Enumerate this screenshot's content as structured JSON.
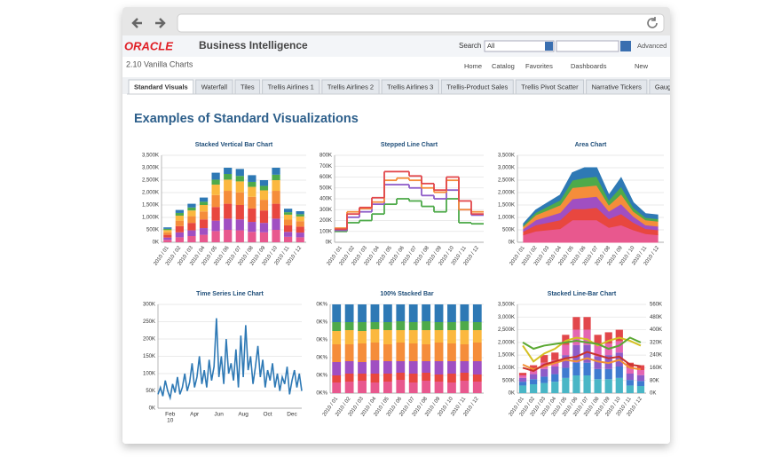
{
  "header": {
    "logo": "ORACLE",
    "product": "Business Intelligence",
    "search_label": "Search",
    "search_scope": "All",
    "advanced": "Advanced"
  },
  "subheader": {
    "dashboard": "2.10 Vanilla Charts",
    "nav": [
      "Home",
      "Catalog",
      "Favorites",
      "Dashboards",
      "New"
    ]
  },
  "tabs": [
    "Standard Visuals",
    "Waterfall",
    "Tiles",
    "Trellis Airlines 1",
    "Trellis Airlines 2",
    "Trellis Airlines 3",
    "Trellis-Product Sales",
    "Trellis Pivot Scatter",
    "Narrative Tickers",
    "Gauges an"
  ],
  "page_title": "Examples of Standard Visualizations",
  "chart_data": [
    {
      "type": "stacked_bar",
      "title": "Stacked Vertical Bar Chart",
      "categories": [
        "2010 / 01",
        "2010 / 02",
        "2010 / 03",
        "2010 / 04",
        "2010 / 05",
        "2010 / 06",
        "2010 / 07",
        "2010 / 08",
        "2010 / 09",
        "2010 / 10",
        "2010 / 11",
        "2010 / 12"
      ],
      "series": [
        {
          "color": "#e8588e",
          "values": [
            100,
            200,
            250,
            300,
            450,
            500,
            480,
            420,
            400,
            500,
            220,
            200
          ]
        },
        {
          "color": "#a04fc2",
          "values": [
            90,
            200,
            230,
            270,
            420,
            450,
            440,
            400,
            380,
            450,
            200,
            190
          ]
        },
        {
          "color": "#e8473f",
          "values": [
            110,
            250,
            300,
            350,
            550,
            600,
            580,
            540,
            500,
            600,
            260,
            240
          ]
        },
        {
          "color": "#f58d3a",
          "values": [
            100,
            220,
            270,
            320,
            480,
            520,
            510,
            470,
            430,
            520,
            230,
            220
          ]
        },
        {
          "color": "#fbb83f",
          "values": [
            90,
            200,
            230,
            260,
            420,
            450,
            440,
            400,
            380,
            430,
            200,
            190
          ]
        },
        {
          "color": "#4eaa4a",
          "values": [
            50,
            110,
            120,
            130,
            200,
            230,
            220,
            200,
            180,
            220,
            100,
            90
          ]
        },
        {
          "color": "#2e79b5",
          "values": [
            60,
            120,
            150,
            170,
            280,
            250,
            280,
            270,
            230,
            280,
            140,
            120
          ]
        }
      ],
      "ylim": [
        0,
        3500
      ],
      "yticks": [
        {
          "value": 0,
          "label": "0K"
        },
        {
          "value": 500,
          "label": "500K"
        },
        {
          "value": 1000,
          "label": "1,000K"
        },
        {
          "value": 1500,
          "label": "1,500K"
        },
        {
          "value": 2000,
          "label": "2,000K"
        },
        {
          "value": 2500,
          "label": "2,500K"
        },
        {
          "value": 3000,
          "label": "3,000K"
        },
        {
          "value": 3500,
          "label": "3,500K"
        }
      ],
      "grid": true
    },
    {
      "type": "stepped_line",
      "title": "Stepped Line Chart",
      "categories": [
        "2010 / 01",
        "2010 / 02",
        "2010 / 03",
        "2010 / 04",
        "2010 / 05",
        "2010 / 06",
        "2010 / 07",
        "2010 / 08",
        "2010 / 09",
        "2010 / 10",
        "2010 / 11",
        "2010 / 12"
      ],
      "series": [
        {
          "color": "#4eaa4a",
          "values": [
            100,
            180,
            200,
            260,
            350,
            400,
            380,
            330,
            280,
            400,
            180,
            170
          ]
        },
        {
          "color": "#8e5cc8",
          "values": [
            110,
            230,
            280,
            350,
            530,
            530,
            500,
            430,
            400,
            480,
            300,
            250
          ]
        },
        {
          "color": "#f58d3a",
          "values": [
            130,
            280,
            310,
            370,
            570,
            590,
            570,
            500,
            460,
            570,
            300,
            280
          ]
        },
        {
          "color": "#e2474b",
          "values": [
            120,
            260,
            320,
            410,
            650,
            650,
            610,
            540,
            480,
            600,
            380,
            260
          ]
        }
      ],
      "ylim": [
        0,
        800
      ],
      "yticks": [
        {
          "value": 0,
          "label": "0K"
        },
        {
          "value": 100,
          "label": "100K"
        },
        {
          "value": 200,
          "label": "200K"
        },
        {
          "value": 300,
          "label": "300K"
        },
        {
          "value": 400,
          "label": "400K"
        },
        {
          "value": 500,
          "label": "500K"
        },
        {
          "value": 600,
          "label": "600K"
        },
        {
          "value": 700,
          "label": "700K"
        },
        {
          "value": 800,
          "label": "800K"
        }
      ],
      "grid": true
    },
    {
      "type": "stacked_area",
      "title": "Area Chart",
      "categories": [
        "2010 / 01",
        "2010 / 02",
        "2010 / 03",
        "2010 / 04",
        "2010 / 05",
        "2010 / 06",
        "2010 / 07",
        "2010 / 08",
        "2010 / 09",
        "2010 / 10",
        "2010 / 11",
        "2010 / 12"
      ],
      "series": [
        {
          "color": "#e8588e",
          "values": [
            300,
            450,
            500,
            550,
            900,
            900,
            900,
            600,
            700,
            500,
            350,
            300
          ]
        },
        {
          "color": "#e8473f",
          "values": [
            150,
            250,
            300,
            350,
            450,
            450,
            500,
            350,
            450,
            300,
            200,
            200
          ]
        },
        {
          "color": "#a04fc2",
          "values": [
            100,
            200,
            250,
            300,
            400,
            450,
            450,
            300,
            400,
            250,
            150,
            150
          ]
        },
        {
          "color": "#f58d3a",
          "values": [
            100,
            200,
            250,
            300,
            450,
            450,
            450,
            250,
            400,
            200,
            200,
            200
          ]
        },
        {
          "color": "#4eaa4a",
          "values": [
            50,
            100,
            150,
            200,
            300,
            350,
            350,
            200,
            300,
            150,
            100,
            100
          ]
        },
        {
          "color": "#2e79b5",
          "values": [
            50,
            100,
            150,
            200,
            300,
            400,
            350,
            200,
            350,
            200,
            150,
            150
          ]
        }
      ],
      "ylim": [
        0,
        3500
      ],
      "yticks": [
        {
          "value": 0,
          "label": "0K"
        },
        {
          "value": 500,
          "label": "500K"
        },
        {
          "value": 1000,
          "label": "1,000K"
        },
        {
          "value": 1500,
          "label": "1,500K"
        },
        {
          "value": 2000,
          "label": "2,000K"
        },
        {
          "value": 2500,
          "label": "2,500K"
        },
        {
          "value": 3000,
          "label": "3,000K"
        },
        {
          "value": 3500,
          "label": "3,500K"
        }
      ],
      "grid": true
    },
    {
      "type": "line",
      "title": "Time Series Line Chart",
      "color": "#2e79b5",
      "values": [
        40,
        60,
        35,
        80,
        50,
        30,
        70,
        45,
        90,
        40,
        60,
        100,
        50,
        75,
        130,
        60,
        90,
        150,
        70,
        110,
        60,
        140,
        80,
        120,
        260,
        90,
        150,
        70,
        200,
        100,
        130,
        80,
        170,
        60,
        210,
        90,
        240,
        110,
        150,
        70,
        120,
        180,
        90,
        140,
        60,
        110,
        80,
        130,
        60,
        100,
        50,
        90,
        70,
        120,
        40,
        80,
        110,
        60,
        100,
        50
      ],
      "xlim": [
        0,
        59
      ],
      "xticks": [
        {
          "value": 5,
          "label": "Feb"
        },
        {
          "value": 15,
          "label": "Apr"
        },
        {
          "value": 25,
          "label": "Jun"
        },
        {
          "value": 35,
          "label": "Aug"
        },
        {
          "value": 45,
          "label": "Oct"
        },
        {
          "value": 55,
          "label": "Dec"
        }
      ],
      "x_sublabel": "10",
      "ylim": [
        0,
        300
      ],
      "yticks": [
        {
          "value": 0,
          "label": "0K"
        },
        {
          "value": 50,
          "label": "50K"
        },
        {
          "value": 100,
          "label": "100K"
        },
        {
          "value": 150,
          "label": "150K"
        },
        {
          "value": 200,
          "label": "200K"
        },
        {
          "value": 250,
          "label": "250K"
        },
        {
          "value": 300,
          "label": "300K"
        }
      ],
      "grid": true
    },
    {
      "type": "stacked_bar",
      "title": "100% Stacked Bar",
      "categories": [
        "2010 / 01",
        "2010 / 02",
        "2010 / 03",
        "2010 / 04",
        "2010 / 05",
        "2010 / 06",
        "2010 / 07",
        "2010 / 08",
        "2010 / 09",
        "2010 / 10",
        "2010 / 11",
        "2010 / 12"
      ],
      "series": [
        {
          "color": "#e8588e",
          "values": [
            12,
            13,
            14,
            12,
            13,
            15,
            12,
            14,
            13,
            12,
            14,
            13
          ]
        },
        {
          "color": "#e8473f",
          "values": [
            8,
            9,
            8,
            10,
            9,
            8,
            10,
            9,
            8,
            10,
            9,
            8
          ]
        },
        {
          "color": "#a04fc2",
          "values": [
            15,
            14,
            13,
            15,
            14,
            13,
            14,
            13,
            15,
            14,
            13,
            15
          ]
        },
        {
          "color": "#f58d3a",
          "values": [
            20,
            19,
            21,
            20,
            19,
            21,
            20,
            19,
            21,
            20,
            19,
            21
          ]
        },
        {
          "color": "#fbb83f",
          "values": [
            15,
            16,
            14,
            15,
            16,
            14,
            15,
            16,
            14,
            15,
            16,
            14
          ]
        },
        {
          "color": "#4eaa4a",
          "values": [
            10,
            9,
            10,
            8,
            9,
            10,
            9,
            10,
            9,
            9,
            10,
            9
          ]
        },
        {
          "color": "#2e79b5",
          "values": [
            20,
            20,
            20,
            20,
            20,
            19,
            20,
            19,
            20,
            20,
            19,
            20
          ]
        }
      ],
      "ylim": [
        0,
        100
      ],
      "yticks": [
        {
          "value": 0,
          "label": "0K%"
        },
        {
          "value": 20,
          "label": "0K%"
        },
        {
          "value": 40,
          "label": "0K%"
        },
        {
          "value": 60,
          "label": "0K%"
        },
        {
          "value": 80,
          "label": "0K%"
        },
        {
          "value": 100,
          "label": "0K%"
        }
      ],
      "grid": true
    },
    {
      "type": "bar_line",
      "title": "Stacked Line-Bar Chart",
      "categories": [
        "2010 / 01",
        "2010 / 02",
        "2010 / 03",
        "2010 / 04",
        "2010 / 05",
        "2010 / 06",
        "2010 / 07",
        "2010 / 08",
        "2010 / 09",
        "2010 / 10",
        "2010 / 11",
        "2010 / 12"
      ],
      "series": [
        {
          "color": "#49b6c6",
          "values": [
            300,
            350,
            400,
            450,
            600,
            700,
            700,
            550,
            550,
            600,
            300,
            280
          ]
        },
        {
          "color": "#3f7bd0",
          "values": [
            150,
            200,
            250,
            300,
            400,
            500,
            500,
            400,
            400,
            450,
            220,
            200
          ]
        },
        {
          "color": "#8e5cc8",
          "values": [
            150,
            200,
            300,
            300,
            500,
            700,
            700,
            500,
            550,
            550,
            250,
            230
          ]
        },
        {
          "color": "#e466b3",
          "values": [
            100,
            150,
            250,
            250,
            400,
            600,
            600,
            450,
            450,
            450,
            230,
            200
          ]
        },
        {
          "color": "#e2474b",
          "values": [
            100,
            200,
            300,
            300,
            400,
            500,
            500,
            400,
            450,
            450,
            200,
            190
          ]
        },
        {
          "color": "#d4c022",
          "axis": "y2",
          "values": [
            300,
            200,
            250,
            280,
            330,
            350,
            340,
            300,
            330,
            350,
            330,
            300
          ]
        },
        {
          "color": "#5aa832",
          "axis": "y2",
          "values": [
            320,
            280,
            300,
            310,
            320,
            330,
            320,
            310,
            280,
            300,
            350,
            320
          ]
        },
        {
          "color": "#f29135",
          "axis": "y2",
          "values": [
            180,
            150,
            170,
            190,
            210,
            200,
            220,
            200,
            190,
            210,
            160,
            150
          ]
        },
        {
          "color": "#c9322c",
          "axis": "y2",
          "values": [
            160,
            140,
            180,
            200,
            220,
            230,
            260,
            240,
            220,
            230,
            180,
            170
          ]
        }
      ],
      "ylim": [
        0,
        3500
      ],
      "yticks": [
        {
          "value": 0,
          "label": "0K"
        },
        {
          "value": 500,
          "label": "500K"
        },
        {
          "value": 1000,
          "label": "1,000K"
        },
        {
          "value": 1500,
          "label": "1,500K"
        },
        {
          "value": 2000,
          "label": "2,000K"
        },
        {
          "value": 2500,
          "label": "2,500K"
        },
        {
          "value": 3000,
          "label": "3,000K"
        },
        {
          "value": 3500,
          "label": "3,500K"
        }
      ],
      "y2lim": [
        0,
        560
      ],
      "y2ticks": [
        {
          "value": 0,
          "label": "0K"
        },
        {
          "value": 80,
          "label": "80K"
        },
        {
          "value": 160,
          "label": "160K"
        },
        {
          "value": 240,
          "label": "240K"
        },
        {
          "value": 320,
          "label": "320K"
        },
        {
          "value": 400,
          "label": "400K"
        },
        {
          "value": 480,
          "label": "480K"
        },
        {
          "value": 560,
          "label": "560K"
        }
      ],
      "grid": true
    }
  ]
}
